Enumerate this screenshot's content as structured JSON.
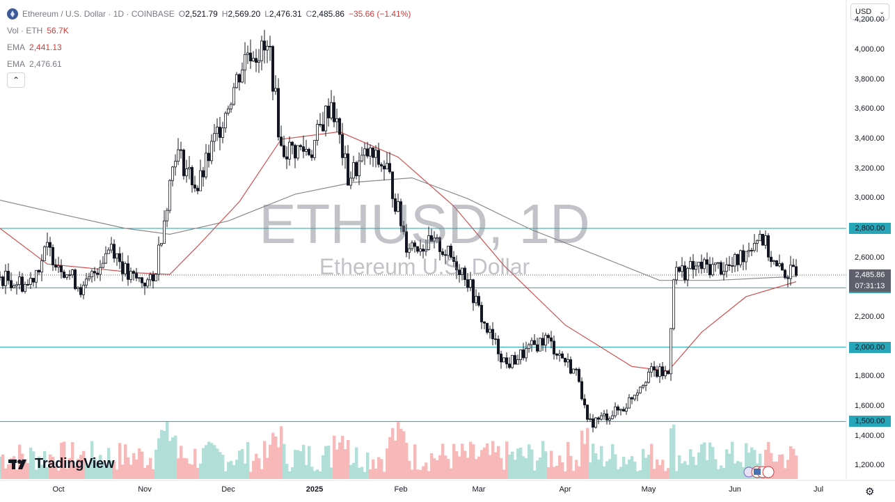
{
  "header": {
    "symbol_title": "Ethereum / U.S. Dollar · 1D · COINBASE",
    "open_key": "O",
    "open": "2,521.79",
    "high_key": "H",
    "high": "2,569.20",
    "low_key": "L",
    "low": "2,476.31",
    "close_key": "C",
    "close": "2,485.86",
    "change": "−35.66 (−1.41%)",
    "change_color": "#d23a3a"
  },
  "indicators": [
    {
      "name": "Vol · ETH",
      "value": "56.7K",
      "value_color": "#d23a3a"
    },
    {
      "name": "EMA",
      "value": "2,441.13",
      "value_color": "#d23a3a"
    },
    {
      "name": "EMA",
      "value": "2,476.61",
      "value_color": "#787b86"
    }
  ],
  "currency": {
    "label": "USD",
    "icon": "chevron-down-icon"
  },
  "watermark": {
    "symbol": "ETHUSD, 1D",
    "description": "Ethereum U.S. Dollar"
  },
  "branding": {
    "logo_text": "TradingView"
  },
  "price_axis": {
    "labels": [
      "4,200.00",
      "4,000.00",
      "3,800.00",
      "3,600.00",
      "3,400.00",
      "3,200.00",
      "3,000.00",
      "2,800.00",
      "2,600.00",
      "2,400.00",
      "2,200.00",
      "2,000.00",
      "1,800.00",
      "1,600.00",
      "1,400.00",
      "1,200.00"
    ],
    "values": [
      4200,
      4000,
      3800,
      3600,
      3400,
      3200,
      3000,
      2800,
      2600,
      2400,
      2200,
      2000,
      1800,
      1600,
      1400,
      1200
    ]
  },
  "time_axis": {
    "labels": [
      "Oct",
      "Nov",
      "Dec",
      "2025",
      "Feb",
      "Mar",
      "Apr",
      "May",
      "Jun",
      "Jul"
    ],
    "bold": [
      false,
      false,
      false,
      true,
      false,
      false,
      false,
      false,
      false,
      false
    ]
  },
  "price_labels": {
    "levels": [
      {
        "text": "2,800.00",
        "value": 2800
      },
      {
        "text": "2,400.00",
        "value": 2400
      },
      {
        "text": "2,000.00",
        "value": 2000
      },
      {
        "text": "1,500.00",
        "value": 1500
      }
    ],
    "current": {
      "text": "2,485.86",
      "value": 2485.86
    },
    "countdown": "07:31:13"
  },
  "colors": {
    "up": "#26a69a",
    "down": "#d23a3a",
    "candle": "#131722",
    "level_line": "#1fa2b4",
    "ema_fast": "#d05050",
    "ema_slow": "#8a8a8a",
    "vol_up": "#9fd8d0",
    "vol_down": "#f4a9a9"
  },
  "chart_data": {
    "type": "candlestick",
    "title": "Ethereum / U.S. Dollar · 1D · COINBASE",
    "x_range": [
      "2024-09-10",
      "2025-07-10"
    ],
    "ylim": [
      1150,
      4300
    ],
    "y_scale": "linear",
    "grid": false,
    "horizontal_levels": [
      2800,
      2400,
      2000,
      1500
    ],
    "anchors": [
      {
        "date": "2024-09-10",
        "close": 2470
      },
      {
        "date": "2024-09-20",
        "close": 2420
      },
      {
        "date": "2024-09-27",
        "close": 2660
      },
      {
        "date": "2024-10-10",
        "close": 2380
      },
      {
        "date": "2024-10-20",
        "close": 2700
      },
      {
        "date": "2024-10-26",
        "close": 2470
      },
      {
        "date": "2024-11-04",
        "close": 2430
      },
      {
        "date": "2024-11-12",
        "close": 3330
      },
      {
        "date": "2024-11-20",
        "close": 3070
      },
      {
        "date": "2024-12-01",
        "close": 3650
      },
      {
        "date": "2024-12-08",
        "close": 4000
      },
      {
        "date": "2024-12-16",
        "close": 3980
      },
      {
        "date": "2024-12-20",
        "close": 3330
      },
      {
        "date": "2024-12-31",
        "close": 3330
      },
      {
        "date": "2025-01-07",
        "close": 3660
      },
      {
        "date": "2025-01-13",
        "close": 3140
      },
      {
        "date": "2025-01-20",
        "close": 3300
      },
      {
        "date": "2025-01-27",
        "close": 3200
      },
      {
        "date": "2025-02-03",
        "close": 2700
      },
      {
        "date": "2025-02-15",
        "close": 2680
      },
      {
        "date": "2025-02-24",
        "close": 2500
      },
      {
        "date": "2025-03-03",
        "close": 2150
      },
      {
        "date": "2025-03-11",
        "close": 1880
      },
      {
        "date": "2025-03-25",
        "close": 2060
      },
      {
        "date": "2025-04-06",
        "close": 1800
      },
      {
        "date": "2025-04-09",
        "close": 1480
      },
      {
        "date": "2025-04-22",
        "close": 1590
      },
      {
        "date": "2025-05-01",
        "close": 1830
      },
      {
        "date": "2025-05-08",
        "close": 1820
      },
      {
        "date": "2025-05-10",
        "close": 2500
      },
      {
        "date": "2025-05-20",
        "close": 2540
      },
      {
        "date": "2025-05-31",
        "close": 2540
      },
      {
        "date": "2025-06-10",
        "close": 2770
      },
      {
        "date": "2025-06-16",
        "close": 2520
      },
      {
        "date": "2025-06-23",
        "close": 2485.86
      }
    ],
    "ema_fast": [
      {
        "date": "2024-09-10",
        "value": 2800
      },
      {
        "date": "2024-09-27",
        "value": 2560
      },
      {
        "date": "2024-10-30",
        "value": 2500
      },
      {
        "date": "2024-11-10",
        "value": 2490
      },
      {
        "date": "2024-11-20",
        "value": 2680
      },
      {
        "date": "2024-12-05",
        "value": 2980
      },
      {
        "date": "2024-12-20",
        "value": 3400
      },
      {
        "date": "2025-01-10",
        "value": 3450
      },
      {
        "date": "2025-01-31",
        "value": 3280
      },
      {
        "date": "2025-02-20",
        "value": 2950
      },
      {
        "date": "2025-03-10",
        "value": 2550
      },
      {
        "date": "2025-04-01",
        "value": 2150
      },
      {
        "date": "2025-04-25",
        "value": 1870
      },
      {
        "date": "2025-05-08",
        "value": 1840
      },
      {
        "date": "2025-05-20",
        "value": 2100
      },
      {
        "date": "2025-06-05",
        "value": 2340
      },
      {
        "date": "2025-06-23",
        "value": 2441.13
      }
    ],
    "ema_slow": [
      {
        "date": "2024-09-10",
        "value": 2990
      },
      {
        "date": "2024-10-01",
        "value": 2900
      },
      {
        "date": "2024-10-25",
        "value": 2800
      },
      {
        "date": "2024-11-10",
        "value": 2760
      },
      {
        "date": "2024-12-01",
        "value": 2850
      },
      {
        "date": "2024-12-25",
        "value": 3030
      },
      {
        "date": "2025-01-15",
        "value": 3110
      },
      {
        "date": "2025-02-05",
        "value": 3140
      },
      {
        "date": "2025-02-25",
        "value": 3000
      },
      {
        "date": "2025-03-20",
        "value": 2790
      },
      {
        "date": "2025-04-15",
        "value": 2600
      },
      {
        "date": "2025-05-05",
        "value": 2450
      },
      {
        "date": "2025-05-25",
        "value": 2450
      },
      {
        "date": "2025-06-23",
        "value": 2476.61
      }
    ]
  }
}
